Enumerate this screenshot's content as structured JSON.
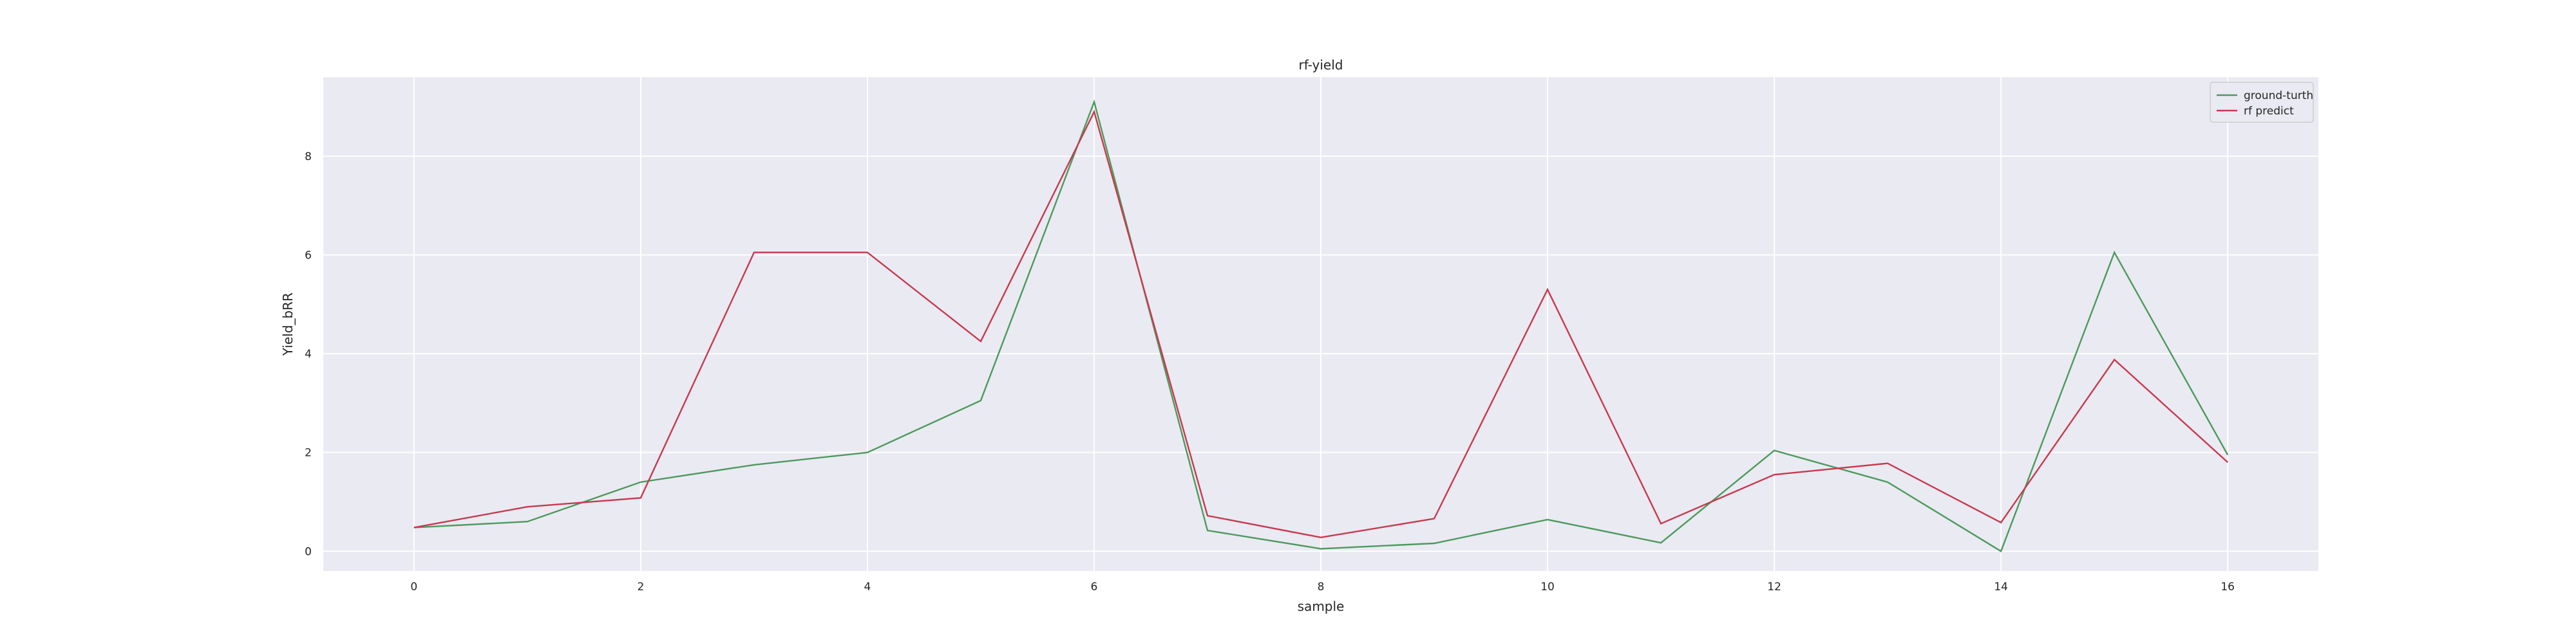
{
  "chart_data": {
    "type": "line",
    "title": "rf-yield",
    "xlabel": "sample",
    "ylabel": "Yield_bRR",
    "xlim": [
      -0.8,
      16.8
    ],
    "ylim": [
      -0.4,
      9.6
    ],
    "xticks": [
      0,
      2,
      4,
      6,
      8,
      10,
      12,
      14,
      16
    ],
    "yticks": [
      0,
      2,
      4,
      6,
      8
    ],
    "grid": true,
    "legend_position": "top-right",
    "x": [
      0,
      1,
      2,
      3,
      4,
      5,
      6,
      7,
      8,
      9,
      10,
      11,
      12,
      13,
      14,
      15,
      16
    ],
    "series": [
      {
        "name": "ground-turth",
        "color": "#4c9a5c",
        "values": [
          0.48,
          0.6,
          1.4,
          1.75,
          2.0,
          3.05,
          9.1,
          0.42,
          0.05,
          0.16,
          0.64,
          0.17,
          2.04,
          1.4,
          0.0,
          6.05,
          1.95
        ]
      },
      {
        "name": "rf predict",
        "color": "#c8394f",
        "values": [
          0.48,
          0.9,
          1.08,
          6.05,
          6.05,
          4.25,
          8.9,
          0.72,
          0.28,
          0.66,
          5.3,
          0.56,
          1.55,
          1.78,
          0.58,
          3.88,
          1.8
        ]
      }
    ]
  }
}
